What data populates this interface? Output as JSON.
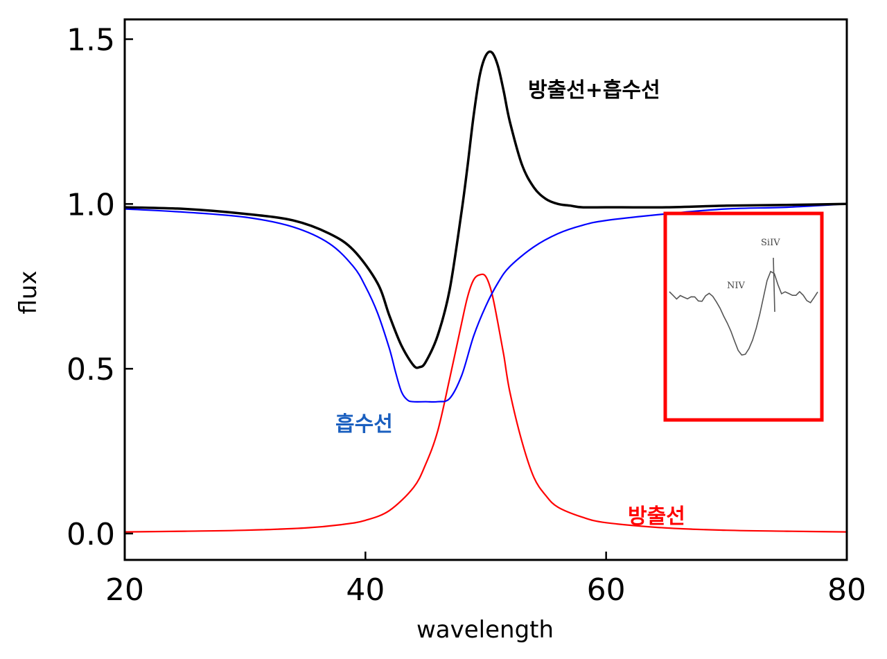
{
  "chart_data": {
    "type": "line",
    "xlabel": "wavelength",
    "ylabel": "flux",
    "xlim": [
      20,
      80
    ],
    "ylim": [
      -0.08,
      1.56
    ],
    "x_ticks": [
      20,
      40,
      60,
      80
    ],
    "y_ticks": [
      0.0,
      0.5,
      1.0,
      1.5
    ],
    "x_tick_labels": [
      "20",
      "40",
      "60",
      "80"
    ],
    "y_tick_labels": [
      "0.0",
      "0.5",
      "1.0",
      "1.5"
    ],
    "series": [
      {
        "name": "방출선+흡수선",
        "color": "#000000",
        "x": [
          20,
          25,
          30,
          34,
          37,
          39,
          41,
          42,
          43,
          44,
          44.5,
          45,
          46,
          47,
          48,
          48.5,
          49,
          49.5,
          50,
          50.5,
          51,
          51.5,
          52,
          53,
          54,
          55,
          56,
          57,
          58,
          60,
          65,
          70,
          75,
          80
        ],
        "values": [
          0.99,
          0.985,
          0.97,
          0.95,
          0.91,
          0.86,
          0.76,
          0.66,
          0.57,
          0.51,
          0.505,
          0.52,
          0.6,
          0.74,
          0.98,
          1.12,
          1.27,
          1.39,
          1.45,
          1.46,
          1.42,
          1.34,
          1.25,
          1.12,
          1.05,
          1.015,
          1.0,
          0.995,
          0.99,
          0.99,
          0.99,
          0.995,
          0.997,
          1.0
        ]
      },
      {
        "name": "흡수선",
        "color": "#0000ff",
        "x": [
          20,
          25,
          30,
          34,
          37,
          39,
          40,
          41,
          42,
          42.5,
          43,
          43.5,
          44,
          45,
          46,
          47,
          48,
          49,
          50,
          51,
          52,
          54,
          56,
          58,
          60,
          65,
          70,
          75,
          80
        ],
        "values": [
          0.985,
          0.975,
          0.96,
          0.93,
          0.88,
          0.81,
          0.75,
          0.67,
          0.56,
          0.49,
          0.43,
          0.405,
          0.4,
          0.4,
          0.4,
          0.41,
          0.48,
          0.6,
          0.69,
          0.76,
          0.81,
          0.87,
          0.91,
          0.935,
          0.95,
          0.97,
          0.985,
          0.99,
          1.0
        ]
      },
      {
        "name": "방출선",
        "color": "#ff0000",
        "x": [
          20,
          25,
          30,
          35,
          38,
          40,
          42,
          44,
          45,
          46,
          47,
          48,
          48.5,
          49,
          49.5,
          50,
          50.5,
          51,
          51.5,
          52,
          53,
          54,
          55,
          56,
          58,
          60,
          65,
          70,
          75,
          80
        ],
        "values": [
          0.005,
          0.007,
          0.01,
          0.017,
          0.027,
          0.04,
          0.07,
          0.14,
          0.21,
          0.31,
          0.47,
          0.64,
          0.72,
          0.77,
          0.785,
          0.78,
          0.73,
          0.64,
          0.54,
          0.43,
          0.28,
          0.17,
          0.115,
          0.08,
          0.05,
          0.033,
          0.017,
          0.01,
          0.007,
          0.005
        ]
      }
    ],
    "annotations": [
      {
        "text": "방출선+흡수선",
        "color": "#000000"
      },
      {
        "text": "흡수선",
        "color": "#1a5fbf"
      },
      {
        "text": "방출선",
        "color": "#ff0000"
      }
    ],
    "inset": {
      "description_labels": [
        "NIV",
        "SiIV"
      ],
      "border_color": "#ff0000",
      "line_color": "#555555",
      "values": [
        0.65,
        0.64,
        0.62,
        0.63,
        0.61,
        0.6,
        0.62,
        0.63,
        0.61,
        0.6,
        0.62,
        0.63,
        0.62,
        0.6,
        0.57,
        0.52,
        0.47,
        0.42,
        0.37,
        0.33,
        0.31,
        0.31,
        0.33,
        0.37,
        0.44,
        0.53,
        0.63,
        0.72,
        0.76,
        0.74,
        0.68,
        0.64,
        0.66,
        0.65,
        0.63,
        0.62,
        0.64,
        0.63,
        0.61,
        0.6,
        0.62,
        0.64
      ]
    }
  }
}
